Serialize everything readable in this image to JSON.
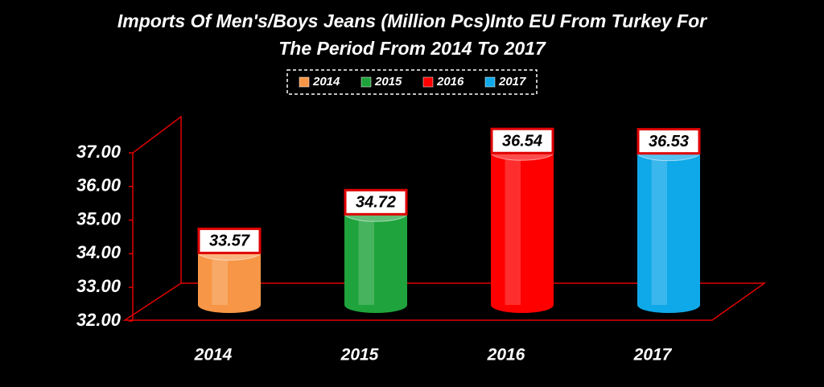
{
  "chart_data": {
    "type": "bar",
    "title": [
      "Imports Of Men's/Boys Jeans (Million Pcs)Into EU From Turkey For",
      "The Period From 2014 To 2017"
    ],
    "categories": [
      "2014",
      "2015",
      "2016",
      "2017"
    ],
    "values": [
      33.57,
      34.72,
      36.54,
      36.53
    ],
    "colors": [
      "#f79646",
      "#1fa33c",
      "#ff0000",
      "#0fa8e8"
    ],
    "ylim": [
      32,
      37
    ],
    "yticks": [
      {
        "value": 32,
        "label": "32.00"
      },
      {
        "value": 33,
        "label": "33.00"
      },
      {
        "value": 34,
        "label": "34.00"
      },
      {
        "value": 35,
        "label": "35.00"
      },
      {
        "value": 36,
        "label": "36.00"
      },
      {
        "value": 37,
        "label": "37.00"
      }
    ],
    "legend": "top"
  }
}
